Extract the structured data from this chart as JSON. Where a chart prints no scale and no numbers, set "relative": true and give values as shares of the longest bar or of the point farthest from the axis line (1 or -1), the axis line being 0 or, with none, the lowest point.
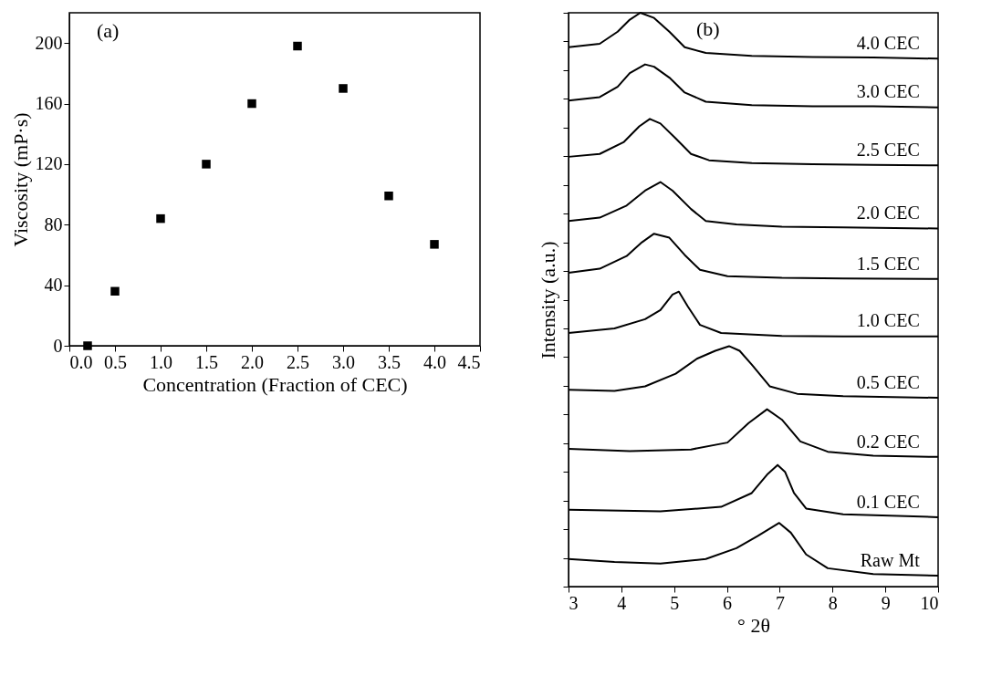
{
  "chart_data": [
    {
      "type": "scatter",
      "xlabel": "Concentration (Fraction of CEC)",
      "ylabel": "Viscosity (mP·s)",
      "annotations": [
        "(a)"
      ],
      "x": [
        0.2,
        0.5,
        1.0,
        1.5,
        2.0,
        2.5,
        3.0,
        3.5,
        4.0
      ],
      "values": [
        0,
        36,
        84,
        120,
        160,
        198,
        170,
        99,
        67
      ],
      "color": "#000000",
      "marker": "square",
      "xlim": [
        0,
        4.5
      ],
      "xticks": [
        {
          "value": 0,
          "label": "0.0"
        },
        0.5,
        {
          "value": 1,
          "label": "1.0"
        },
        1.5,
        {
          "value": 2,
          "label": "2.0"
        },
        2.5,
        {
          "value": 3,
          "label": "3.0"
        },
        3.5,
        {
          "value": 4,
          "label": "4.0"
        },
        4.5
      ],
      "ylim": [
        0,
        220
      ],
      "yticks": [
        0,
        40,
        80,
        120,
        160,
        200
      ],
      "grid": false
    },
    {
      "type": "line",
      "relative": true,
      "xlabel": "° 2θ",
      "ylabel": "Intensity (a.u.)",
      "annotations": [
        "(b)"
      ],
      "xlim": [
        3,
        10
      ],
      "xticks": [
        3,
        4,
        5,
        6,
        7,
        8,
        9,
        10
      ],
      "tick_labels": "x",
      "grid": false,
      "legend": false,
      "marker": "none",
      "series": [
        {
          "name": "4.0 CEC",
          "color": "#000000",
          "x": [
            3.0,
            3.59,
            3.93,
            4.16,
            4.36,
            4.62,
            4.91,
            5.2,
            5.6,
            6.47,
            7.62,
            8.77,
            10.0
          ],
          "values": [
            0.94,
            0.946,
            0.967,
            0.988,
            1.0,
            0.991,
            0.967,
            0.94,
            0.93,
            0.925,
            0.923,
            0.922,
            0.92
          ]
        },
        {
          "name": "3.0 CEC",
          "color": "#000000",
          "x": [
            3.0,
            3.59,
            3.93,
            4.16,
            4.45,
            4.62,
            4.91,
            5.2,
            5.6,
            6.47,
            7.62,
            8.77,
            10.0
          ],
          "values": [
            0.847,
            0.853,
            0.871,
            0.895,
            0.91,
            0.906,
            0.887,
            0.861,
            0.845,
            0.839,
            0.837,
            0.837,
            0.835
          ]
        },
        {
          "name": "2.5 CEC",
          "color": "#000000",
          "x": [
            3.0,
            3.59,
            4.05,
            4.34,
            4.54,
            4.74,
            5.03,
            5.32,
            5.66,
            6.47,
            7.62,
            8.77,
            10.0
          ],
          "values": [
            0.749,
            0.754,
            0.775,
            0.802,
            0.815,
            0.807,
            0.781,
            0.754,
            0.743,
            0.738,
            0.736,
            0.735,
            0.734
          ]
        },
        {
          "name": "2.0 CEC",
          "color": "#000000",
          "x": [
            3.0,
            3.59,
            4.1,
            4.45,
            4.74,
            4.97,
            5.32,
            5.6,
            6.18,
            7.04,
            8.2,
            10.0
          ],
          "values": [
            0.637,
            0.643,
            0.664,
            0.69,
            0.705,
            0.69,
            0.658,
            0.637,
            0.631,
            0.627,
            0.626,
            0.624
          ]
        },
        {
          "name": "1.5 CEC",
          "color": "#000000",
          "x": [
            3.0,
            3.59,
            4.1,
            4.39,
            4.62,
            4.91,
            5.2,
            5.49,
            6.01,
            7.04,
            8.2,
            10.0
          ],
          "values": [
            0.547,
            0.554,
            0.576,
            0.6,
            0.615,
            0.608,
            0.578,
            0.552,
            0.541,
            0.538,
            0.537,
            0.536
          ]
        },
        {
          "name": "1.0 CEC",
          "color": "#000000",
          "x": [
            3.0,
            3.87,
            4.45,
            4.74,
            4.97,
            5.09,
            5.26,
            5.49,
            5.89,
            7.04,
            8.2,
            10.0
          ],
          "values": [
            0.442,
            0.45,
            0.466,
            0.482,
            0.509,
            0.514,
            0.488,
            0.456,
            0.442,
            0.437,
            0.436,
            0.436
          ]
        },
        {
          "name": "0.5 CEC",
          "color": "#000000",
          "x": [
            3.0,
            3.87,
            4.45,
            5.03,
            5.43,
            5.78,
            6.04,
            6.24,
            6.47,
            6.81,
            7.33,
            8.2,
            10.0
          ],
          "values": [
            0.343,
            0.341,
            0.349,
            0.371,
            0.397,
            0.411,
            0.419,
            0.411,
            0.387,
            0.349,
            0.336,
            0.332,
            0.329
          ]
        },
        {
          "name": "0.2 CEC",
          "color": "#000000",
          "x": [
            3.0,
            4.16,
            5.32,
            6.01,
            6.41,
            6.76,
            7.04,
            7.39,
            7.91,
            8.77,
            10.0
          ],
          "values": [
            0.24,
            0.236,
            0.239,
            0.251,
            0.285,
            0.309,
            0.291,
            0.253,
            0.235,
            0.228,
            0.226
          ]
        },
        {
          "name": "0.1 CEC",
          "color": "#000000",
          "x": [
            3.0,
            4.74,
            5.89,
            6.47,
            6.76,
            6.96,
            7.1,
            7.27,
            7.5,
            8.2,
            10.0
          ],
          "values": [
            0.134,
            0.131,
            0.139,
            0.163,
            0.195,
            0.212,
            0.2,
            0.163,
            0.136,
            0.126,
            0.121
          ]
        },
        {
          "name": "Raw Mt",
          "color": "#000000",
          "x": [
            3.0,
            3.87,
            4.74,
            5.6,
            6.18,
            6.58,
            6.99,
            7.21,
            7.5,
            7.91,
            8.77,
            10.0
          ],
          "values": [
            0.048,
            0.043,
            0.04,
            0.048,
            0.067,
            0.088,
            0.111,
            0.094,
            0.056,
            0.032,
            0.022,
            0.019
          ]
        }
      ]
    }
  ]
}
